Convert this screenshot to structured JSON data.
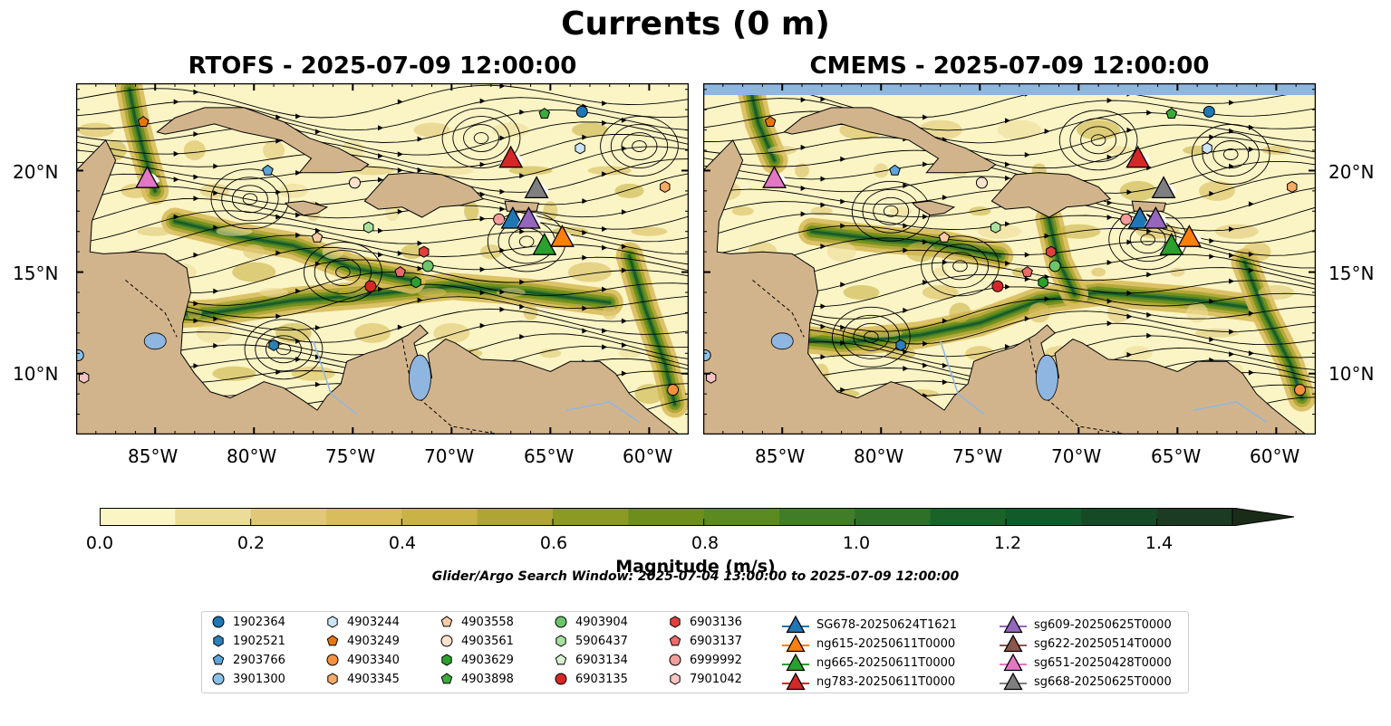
{
  "title": "Currents (0 m)",
  "panels": [
    {
      "id": "rtofs",
      "title": "RTOFS - 2025-07-09 12:00:00"
    },
    {
      "id": "cmems",
      "title": "CMEMS - 2025-07-09 12:00:00"
    }
  ],
  "map_extent": {
    "lon": [
      -89.0,
      -58.0
    ],
    "lat": [
      7.0,
      24.3
    ]
  },
  "lat_ticks": [
    {
      "value": 20,
      "label": "20°N"
    },
    {
      "value": 15,
      "label": "15°N"
    },
    {
      "value": 10,
      "label": "10°N"
    }
  ],
  "lon_ticks": [
    {
      "value": -85,
      "label": "85°W"
    },
    {
      "value": -80,
      "label": "80°W"
    },
    {
      "value": -75,
      "label": "75°W"
    },
    {
      "value": -70,
      "label": "70°W"
    },
    {
      "value": -65,
      "label": "65°W"
    },
    {
      "value": -60,
      "label": "60°W"
    }
  ],
  "colorbar": {
    "label": "Magnitude (m/s)",
    "min": 0.0,
    "max": 1.5,
    "extend": "max",
    "ticks": [
      "0.0",
      "0.2",
      "0.4",
      "0.6",
      "0.8",
      "1.0",
      "1.2",
      "1.4"
    ],
    "tick_values": [
      0.0,
      0.2,
      0.4,
      0.6,
      0.8,
      1.0,
      1.2,
      1.4
    ],
    "colors": [
      "#fbf4c4",
      "#ecdc9a",
      "#e0c878",
      "#d8bd5c",
      "#c9b246",
      "#aea535",
      "#8a9a22",
      "#6e8e1b",
      "#5a8a20",
      "#417d28",
      "#2e7028",
      "#1a6228",
      "#135a2a",
      "#164a26",
      "#1b3c22",
      "#1a2c18"
    ]
  },
  "search_window": "Glider/Argo Search Window: 2025-07-04 13:00:00 to 2025-07-09 12:00:00",
  "colors": {
    "land": "#d2b48c",
    "water": "#8fb6e0",
    "ocean_low": "#fbf4c4"
  },
  "legend": {
    "columns": [
      [
        {
          "label": "1902364",
          "marker": "circle",
          "color": "#1f77b4"
        },
        {
          "label": "1902521",
          "marker": "hexagon",
          "color": "#2c7fb8"
        },
        {
          "label": "2903766",
          "marker": "pentagon",
          "color": "#5da5da"
        },
        {
          "label": "3901300",
          "marker": "circle",
          "color": "#8cc2e8"
        }
      ],
      [
        {
          "label": "4903244",
          "marker": "hexagon",
          "color": "#cde6f7"
        },
        {
          "label": "4903249",
          "marker": "pentagon",
          "color": "#e6750f"
        },
        {
          "label": "4903340",
          "marker": "circle",
          "color": "#f5913d"
        },
        {
          "label": "4903345",
          "marker": "hexagon",
          "color": "#f7aa66"
        }
      ],
      [
        {
          "label": "4903558",
          "marker": "pentagon",
          "color": "#fbcba4"
        },
        {
          "label": "4903561",
          "marker": "circle",
          "color": "#fde3cd"
        },
        {
          "label": "4903629",
          "marker": "hexagon",
          "color": "#2ca02c"
        },
        {
          "label": "4903898",
          "marker": "pentagon",
          "color": "#3bab3b"
        }
      ],
      [
        {
          "label": "4903904",
          "marker": "circle",
          "color": "#6cc46c"
        },
        {
          "label": "5906437",
          "marker": "hexagon",
          "color": "#a8e0a0"
        },
        {
          "label": "6903134",
          "marker": "pentagon",
          "color": "#d8f2d0"
        },
        {
          "label": "6903135",
          "marker": "circle",
          "color": "#d62728"
        }
      ],
      [
        {
          "label": "6903136",
          "marker": "hexagon",
          "color": "#e0403d"
        },
        {
          "label": "6903137",
          "marker": "pentagon",
          "color": "#ec6a6a"
        },
        {
          "label": "6999992",
          "marker": "circle",
          "color": "#f29c9c"
        },
        {
          "label": "7901042",
          "marker": "hexagon",
          "color": "#f7c4c4"
        }
      ],
      [
        {
          "label": "SG678-20250624T1621",
          "marker": "triangle",
          "color": "#1f77b4"
        },
        {
          "label": "ng615-20250611T0000",
          "marker": "triangle",
          "color": "#ff7f0e"
        },
        {
          "label": "ng665-20250611T0000",
          "marker": "triangle",
          "color": "#2ca02c"
        },
        {
          "label": "ng783-20250611T0000",
          "marker": "triangle",
          "color": "#d62728"
        }
      ],
      [
        {
          "label": "sg609-20250625T0000",
          "marker": "triangle",
          "color": "#9467bd"
        },
        {
          "label": "sg622-20250514T0000",
          "marker": "triangle",
          "color": "#8c564b"
        },
        {
          "label": "sg651-20250428T0000",
          "marker": "triangle",
          "color": "#e377c2"
        },
        {
          "label": "sg668-20250625T0000",
          "marker": "triangle",
          "color": "#7f7f7f"
        }
      ]
    ]
  },
  "argo_floats": [
    {
      "id": "1902364",
      "lon": -63.4,
      "lat": 22.9
    },
    {
      "id": "4903249",
      "lon": -85.6,
      "lat": 22.4
    },
    {
      "id": "4903898",
      "lon": -65.3,
      "lat": 22.8
    },
    {
      "id": "4903244",
      "lon": -63.5,
      "lat": 21.1
    },
    {
      "id": "2903766",
      "lon": -79.3,
      "lat": 20.0
    },
    {
      "id": "4903561",
      "lon": -74.9,
      "lat": 19.4
    },
    {
      "id": "4903345",
      "lon": -59.2,
      "lat": 19.2
    },
    {
      "id": "6999992",
      "lon": -67.6,
      "lat": 17.6
    },
    {
      "id": "5906437",
      "lon": -74.2,
      "lat": 17.2
    },
    {
      "id": "4903558",
      "lon": -76.8,
      "lat": 16.7
    },
    {
      "id": "6903136",
      "lon": -71.4,
      "lat": 16.0
    },
    {
      "id": "4903904",
      "lon": -71.2,
      "lat": 15.3
    },
    {
      "id": "6903137",
      "lon": -72.6,
      "lat": 15.0
    },
    {
      "id": "4903629",
      "lon": -71.8,
      "lat": 14.5
    },
    {
      "id": "6903135",
      "lon": -74.1,
      "lat": 14.3
    },
    {
      "id": "1902521",
      "lon": -79.0,
      "lat": 11.4
    },
    {
      "id": "3901300",
      "lon": -88.9,
      "lat": 10.9
    },
    {
      "id": "7901042",
      "lon": -88.6,
      "lat": 9.8
    },
    {
      "id": "4903340",
      "lon": -58.8,
      "lat": 9.2
    }
  ],
  "gliders": [
    {
      "id": "sg651-20250428T0000",
      "lon": -85.4,
      "lat": 19.6
    },
    {
      "id": "ng783-20250611T0000",
      "lon": -67.0,
      "lat": 20.6
    },
    {
      "id": "sg668-20250625T0000",
      "lon": -65.7,
      "lat": 19.1
    },
    {
      "id": "SG678-20250624T1621",
      "lon": -66.9,
      "lat": 17.6
    },
    {
      "id": "sg609-20250625T0000",
      "lon": -66.1,
      "lat": 17.6
    },
    {
      "id": "ng665-20250611T0000",
      "lon": -65.3,
      "lat": 16.3
    },
    {
      "id": "ng615-20250611T0000",
      "lon": -64.4,
      "lat": 16.7
    }
  ]
}
